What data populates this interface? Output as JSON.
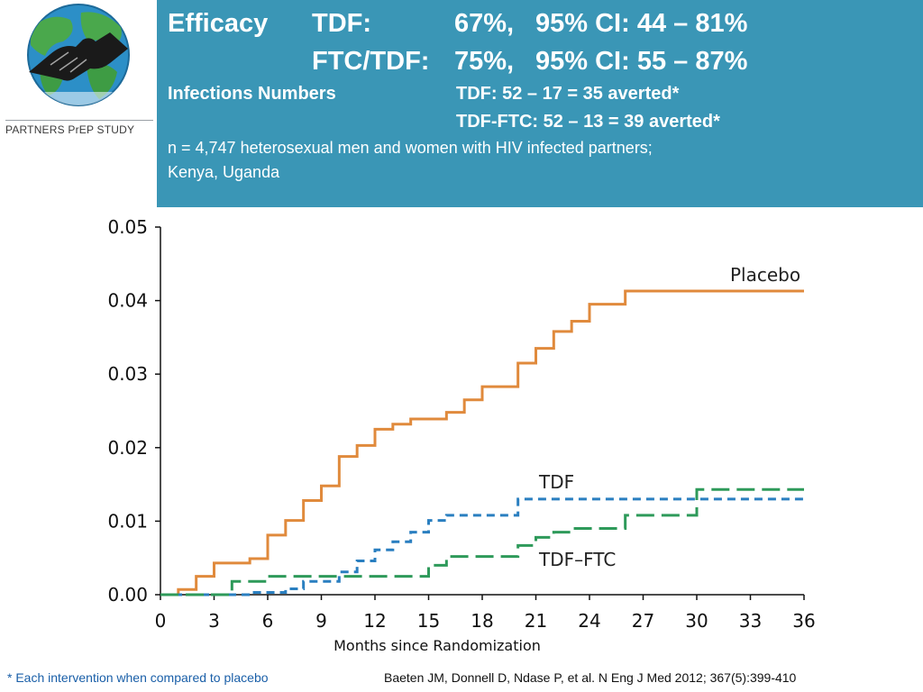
{
  "logo": {
    "text": "PARTNERS PrEP STUDY",
    "icon": "handshake-globe-icon"
  },
  "header": {
    "efficacy_label": "Efficacy",
    "tdf_label": "TDF:",
    "tdf_value": "67%,",
    "tdf_ci": "95% CI: 44 – 81%",
    "ftc_label": "FTC/TDF:",
    "ftc_value": "75%,",
    "ftc_ci": "95% CI: 55 – 87%",
    "infections_label": "Infections Numbers",
    "infections_tdf": "TDF: 52 – 17 = 35 averted*",
    "infections_ftc": "TDF-FTC: 52 – 13 = 39 averted*",
    "population_line1": "n = 4,747 heterosexual men and women with HIV infected partners;",
    "population_line2": "Kenya, Uganda"
  },
  "colors": {
    "header_bg": "#3a96b6",
    "placebo": "#e08a3c",
    "tdf": "#2a7fc0",
    "tdf_ftc": "#2e9a5a"
  },
  "chart_data": {
    "type": "line",
    "title": "",
    "xlabel": "Months since Randomization",
    "ylabel": "",
    "xlim": [
      0,
      36
    ],
    "ylim": [
      0,
      0.05
    ],
    "x_ticks": [
      "0",
      "3",
      "6",
      "9",
      "12",
      "15",
      "18",
      "21",
      "24",
      "27",
      "30",
      "33",
      "36"
    ],
    "y_ticks": [
      "0.00",
      "0.01",
      "0.02",
      "0.03",
      "0.04",
      "0.05"
    ],
    "grid": false,
    "legend": "labels on lines",
    "series": [
      {
        "name": "Placebo",
        "style": "solid",
        "color": "#e08a3c",
        "points": [
          [
            0,
            0
          ],
          [
            1,
            0.0007
          ],
          [
            2,
            0.0025
          ],
          [
            3,
            0.0043
          ],
          [
            5,
            0.0049
          ],
          [
            6,
            0.0081
          ],
          [
            7,
            0.0101
          ],
          [
            8,
            0.0128
          ],
          [
            9,
            0.0148
          ],
          [
            10,
            0.0188
          ],
          [
            11,
            0.0203
          ],
          [
            12,
            0.0225
          ],
          [
            13,
            0.0232
          ],
          [
            14,
            0.0239
          ],
          [
            16,
            0.0248
          ],
          [
            17,
            0.0265
          ],
          [
            18,
            0.0283
          ],
          [
            20,
            0.0315
          ],
          [
            21,
            0.0335
          ],
          [
            22,
            0.0358
          ],
          [
            23,
            0.0372
          ],
          [
            24,
            0.0395
          ],
          [
            26,
            0.0413
          ],
          [
            36,
            0.0413
          ]
        ]
      },
      {
        "name": "TDF",
        "style": "dashed",
        "color": "#2a7fc0",
        "points": [
          [
            0,
            0
          ],
          [
            4.5,
            0
          ],
          [
            5,
            0.0003
          ],
          [
            7,
            0.0008
          ],
          [
            8,
            0.0018
          ],
          [
            10,
            0.0031
          ],
          [
            11,
            0.0046
          ],
          [
            12,
            0.0061
          ],
          [
            13,
            0.0072
          ],
          [
            14,
            0.0085
          ],
          [
            15,
            0.0101
          ],
          [
            16,
            0.0108
          ],
          [
            20,
            0.013
          ],
          [
            36,
            0.013
          ]
        ]
      },
      {
        "name": "TDF–FTC",
        "style": "long-dashed",
        "color": "#2e9a5a",
        "points": [
          [
            0,
            0
          ],
          [
            4,
            0
          ],
          [
            4,
            0.0018
          ],
          [
            6,
            0.0025
          ],
          [
            15,
            0.0025
          ],
          [
            15,
            0.004
          ],
          [
            16,
            0.0052
          ],
          [
            20,
            0.0067
          ],
          [
            21,
            0.0078
          ],
          [
            22,
            0.0085
          ],
          [
            23,
            0.009
          ],
          [
            26,
            0.0108
          ],
          [
            30,
            0.0108
          ],
          [
            30,
            0.0143
          ],
          [
            36,
            0.0143
          ]
        ]
      }
    ]
  },
  "footnotes": {
    "left": "* Each intervention when compared to placebo",
    "right": "Baeten JM, Donnell D, Ndase P, et al. N Eng J Med 2012; 367(5):399-410"
  }
}
